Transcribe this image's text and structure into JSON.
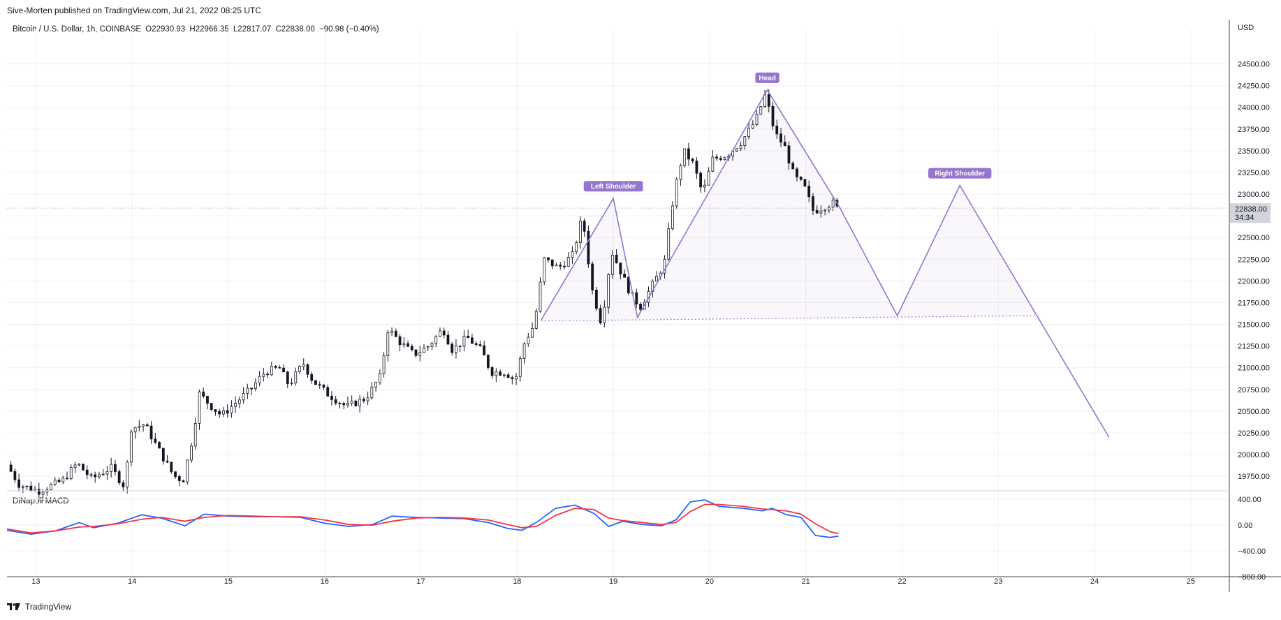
{
  "header": {
    "publisher": "Sive-Morten published on TradingView.com, Jul 21, 2022 08:25 UTC"
  },
  "legend": {
    "symbol": "Bitcoin / U.S. Dollar, 1h, COINBASE",
    "open": "O22930.93",
    "high": "H22966.35",
    "low": "L22817.07",
    "close": "C22838.00",
    "change": "−90.98 (−0.40%)"
  },
  "indicator": {
    "label": "DiNapoli MACD"
  },
  "footer": {
    "brand": "TradingView",
    "logo_icon": "tradingview-logo-icon"
  },
  "colors": {
    "pattern": "#9575cd",
    "pattern_label_bg": "#9575cd",
    "macd_line": "#2962ff",
    "signal_line": "#f23645",
    "candle": "#131722",
    "grid": "#eef0f3",
    "price_badge_bg": "#d1d4dc"
  },
  "chart_data": {
    "type": "candlestick",
    "currency": "USD",
    "price_axis": {
      "range": [
        19590,
        24850
      ],
      "ticks": [
        19750,
        20000,
        20250,
        20500,
        20750,
        21000,
        21250,
        21500,
        21750,
        22000,
        22250,
        22500,
        22750,
        23000,
        23250,
        23500,
        23750,
        24000,
        24250,
        24500
      ],
      "tick_labels": [
        "19750.00",
        "20000.00",
        "20250.00",
        "20500.00",
        "20750.00",
        "21000.00",
        "21250.00",
        "21500.00",
        "21750.00",
        "22000.00",
        "22250.00",
        "22500.00",
        "22750.00",
        "23000.00",
        "23250.00",
        "23500.00",
        "23750.00",
        "24000.00",
        "24250.00",
        "24500.00"
      ]
    },
    "time_axis": {
      "range_days": [
        12.7,
        25.4
      ],
      "ticks": [
        13,
        14,
        15,
        16,
        17,
        18,
        19,
        20,
        21,
        22,
        23,
        24,
        25
      ],
      "tick_labels": [
        "13",
        "14",
        "15",
        "16",
        "17",
        "18",
        "19",
        "20",
        "21",
        "22",
        "23",
        "24",
        "25"
      ]
    },
    "last_price": {
      "value": 22838,
      "label": "22838.00",
      "countdown": "34:34"
    },
    "price_path": [
      [
        12.72,
        19880
      ],
      [
        12.85,
        19650
      ],
      [
        13.05,
        19580
      ],
      [
        13.3,
        19700
      ],
      [
        13.45,
        19900
      ],
      [
        13.6,
        19720
      ],
      [
        13.8,
        19850
      ],
      [
        13.95,
        19620
      ],
      [
        14.0,
        20300
      ],
      [
        14.15,
        20350
      ],
      [
        14.3,
        20050
      ],
      [
        14.45,
        19760
      ],
      [
        14.55,
        19700
      ],
      [
        14.65,
        20200
      ],
      [
        14.72,
        20700
      ],
      [
        14.85,
        20550
      ],
      [
        14.95,
        20450
      ],
      [
        15.1,
        20600
      ],
      [
        15.25,
        20750
      ],
      [
        15.4,
        20950
      ],
      [
        15.55,
        21000
      ],
      [
        15.65,
        20800
      ],
      [
        15.8,
        21050
      ],
      [
        15.9,
        20850
      ],
      [
        16.05,
        20700
      ],
      [
        16.25,
        20550
      ],
      [
        16.45,
        20650
      ],
      [
        16.6,
        20900
      ],
      [
        16.68,
        21450
      ],
      [
        16.8,
        21300
      ],
      [
        16.95,
        21150
      ],
      [
        17.1,
        21250
      ],
      [
        17.25,
        21450
      ],
      [
        17.35,
        21200
      ],
      [
        17.5,
        21350
      ],
      [
        17.65,
        21200
      ],
      [
        17.75,
        20950
      ],
      [
        17.9,
        20950
      ],
      [
        18.0,
        20850
      ],
      [
        18.1,
        21300
      ],
      [
        18.2,
        21500
      ],
      [
        18.3,
        22250
      ],
      [
        18.45,
        22150
      ],
      [
        18.6,
        22300
      ],
      [
        18.7,
        22750
      ],
      [
        18.8,
        21900
      ],
      [
        18.9,
        21500
      ],
      [
        19.0,
        22350
      ],
      [
        19.1,
        22100
      ],
      [
        19.2,
        21850
      ],
      [
        19.3,
        21700
      ],
      [
        19.45,
        22000
      ],
      [
        19.55,
        22200
      ],
      [
        19.65,
        23000
      ],
      [
        19.75,
        23500
      ],
      [
        19.85,
        23350
      ],
      [
        19.95,
        23000
      ],
      [
        20.05,
        23400
      ],
      [
        20.2,
        23450
      ],
      [
        20.35,
        23600
      ],
      [
        20.5,
        23850
      ],
      [
        20.6,
        24150
      ],
      [
        20.7,
        23700
      ],
      [
        20.8,
        23550
      ],
      [
        20.9,
        23200
      ],
      [
        21.0,
        23100
      ],
      [
        21.1,
        22800
      ],
      [
        21.2,
        22850
      ],
      [
        21.3,
        22900
      ],
      [
        21.34,
        22838
      ]
    ],
    "candles_visible": "1h bars from Jul 12 to Jul 21 (approximated from price_path)",
    "pattern": {
      "name": "head-and-shoulders",
      "points": [
        [
          18.25,
          21550
        ],
        [
          19.0,
          22950
        ],
        [
          19.25,
          21580
        ],
        [
          20.6,
          24200
        ],
        [
          21.35,
          22850
        ],
        [
          21.95,
          21600
        ],
        [
          22.6,
          23100
        ],
        [
          23.4,
          21600
        ],
        [
          24.15,
          20200
        ]
      ],
      "neckline": {
        "start": [
          18.25,
          21540
        ],
        "end": [
          23.4,
          21600
        ]
      },
      "labels": [
        {
          "text": "Left Shoulder",
          "at": [
            19.0,
            22950
          ]
        },
        {
          "text": "Head",
          "at": [
            20.6,
            24200
          ]
        },
        {
          "text": "Right Shoulder",
          "at": [
            22.6,
            23100
          ]
        }
      ]
    },
    "macd": {
      "name": "DiNapoli MACD",
      "axis_range": [
        -820,
        520
      ],
      "ticks": [
        -800,
        -400,
        0,
        400
      ],
      "tick_labels": [
        "−800.00",
        "−400.00",
        "0.00",
        "400.00"
      ],
      "series": [
        {
          "role": "macd",
          "points": [
            [
              12.7,
              -80
            ],
            [
              12.95,
              -140
            ],
            [
              13.2,
              -90
            ],
            [
              13.45,
              40
            ],
            [
              13.6,
              -40
            ],
            [
              13.85,
              30
            ],
            [
              14.1,
              160
            ],
            [
              14.3,
              110
            ],
            [
              14.55,
              -10
            ],
            [
              14.75,
              170
            ],
            [
              15.0,
              140
            ],
            [
              15.25,
              130
            ],
            [
              15.5,
              130
            ],
            [
              15.75,
              120
            ],
            [
              16.0,
              30
            ],
            [
              16.25,
              -20
            ],
            [
              16.5,
              10
            ],
            [
              16.7,
              140
            ],
            [
              16.95,
              120
            ],
            [
              17.2,
              110
            ],
            [
              17.45,
              100
            ],
            [
              17.7,
              40
            ],
            [
              17.9,
              -50
            ],
            [
              18.05,
              -80
            ],
            [
              18.2,
              40
            ],
            [
              18.4,
              260
            ],
            [
              18.6,
              310
            ],
            [
              18.8,
              180
            ],
            [
              18.95,
              -20
            ],
            [
              19.1,
              60
            ],
            [
              19.3,
              10
            ],
            [
              19.5,
              -10
            ],
            [
              19.65,
              80
            ],
            [
              19.8,
              360
            ],
            [
              19.95,
              390
            ],
            [
              20.1,
              290
            ],
            [
              20.35,
              260
            ],
            [
              20.55,
              220
            ],
            [
              20.65,
              260
            ],
            [
              20.8,
              160
            ],
            [
              20.95,
              120
            ],
            [
              21.1,
              -160
            ],
            [
              21.25,
              -190
            ],
            [
              21.34,
              -170
            ]
          ]
        },
        {
          "role": "signal",
          "points": [
            [
              12.7,
              -60
            ],
            [
              12.95,
              -120
            ],
            [
              13.2,
              -90
            ],
            [
              13.45,
              -30
            ],
            [
              13.6,
              -20
            ],
            [
              13.85,
              20
            ],
            [
              14.1,
              90
            ],
            [
              14.3,
              120
            ],
            [
              14.55,
              60
            ],
            [
              14.75,
              120
            ],
            [
              15.0,
              150
            ],
            [
              15.25,
              140
            ],
            [
              15.5,
              130
            ],
            [
              15.75,
              130
            ],
            [
              16.0,
              80
            ],
            [
              16.25,
              10
            ],
            [
              16.5,
              0
            ],
            [
              16.7,
              60
            ],
            [
              16.95,
              110
            ],
            [
              17.2,
              120
            ],
            [
              17.45,
              110
            ],
            [
              17.7,
              80
            ],
            [
              17.9,
              10
            ],
            [
              18.05,
              -40
            ],
            [
              18.2,
              -20
            ],
            [
              18.4,
              150
            ],
            [
              18.6,
              260
            ],
            [
              18.8,
              240
            ],
            [
              18.95,
              110
            ],
            [
              19.1,
              70
            ],
            [
              19.3,
              40
            ],
            [
              19.5,
              10
            ],
            [
              19.65,
              40
            ],
            [
              19.8,
              210
            ],
            [
              19.95,
              320
            ],
            [
              20.1,
              320
            ],
            [
              20.35,
              290
            ],
            [
              20.55,
              250
            ],
            [
              20.65,
              240
            ],
            [
              20.8,
              220
            ],
            [
              20.95,
              170
            ],
            [
              21.1,
              20
            ],
            [
              21.25,
              -100
            ],
            [
              21.34,
              -130
            ]
          ]
        }
      ]
    }
  }
}
